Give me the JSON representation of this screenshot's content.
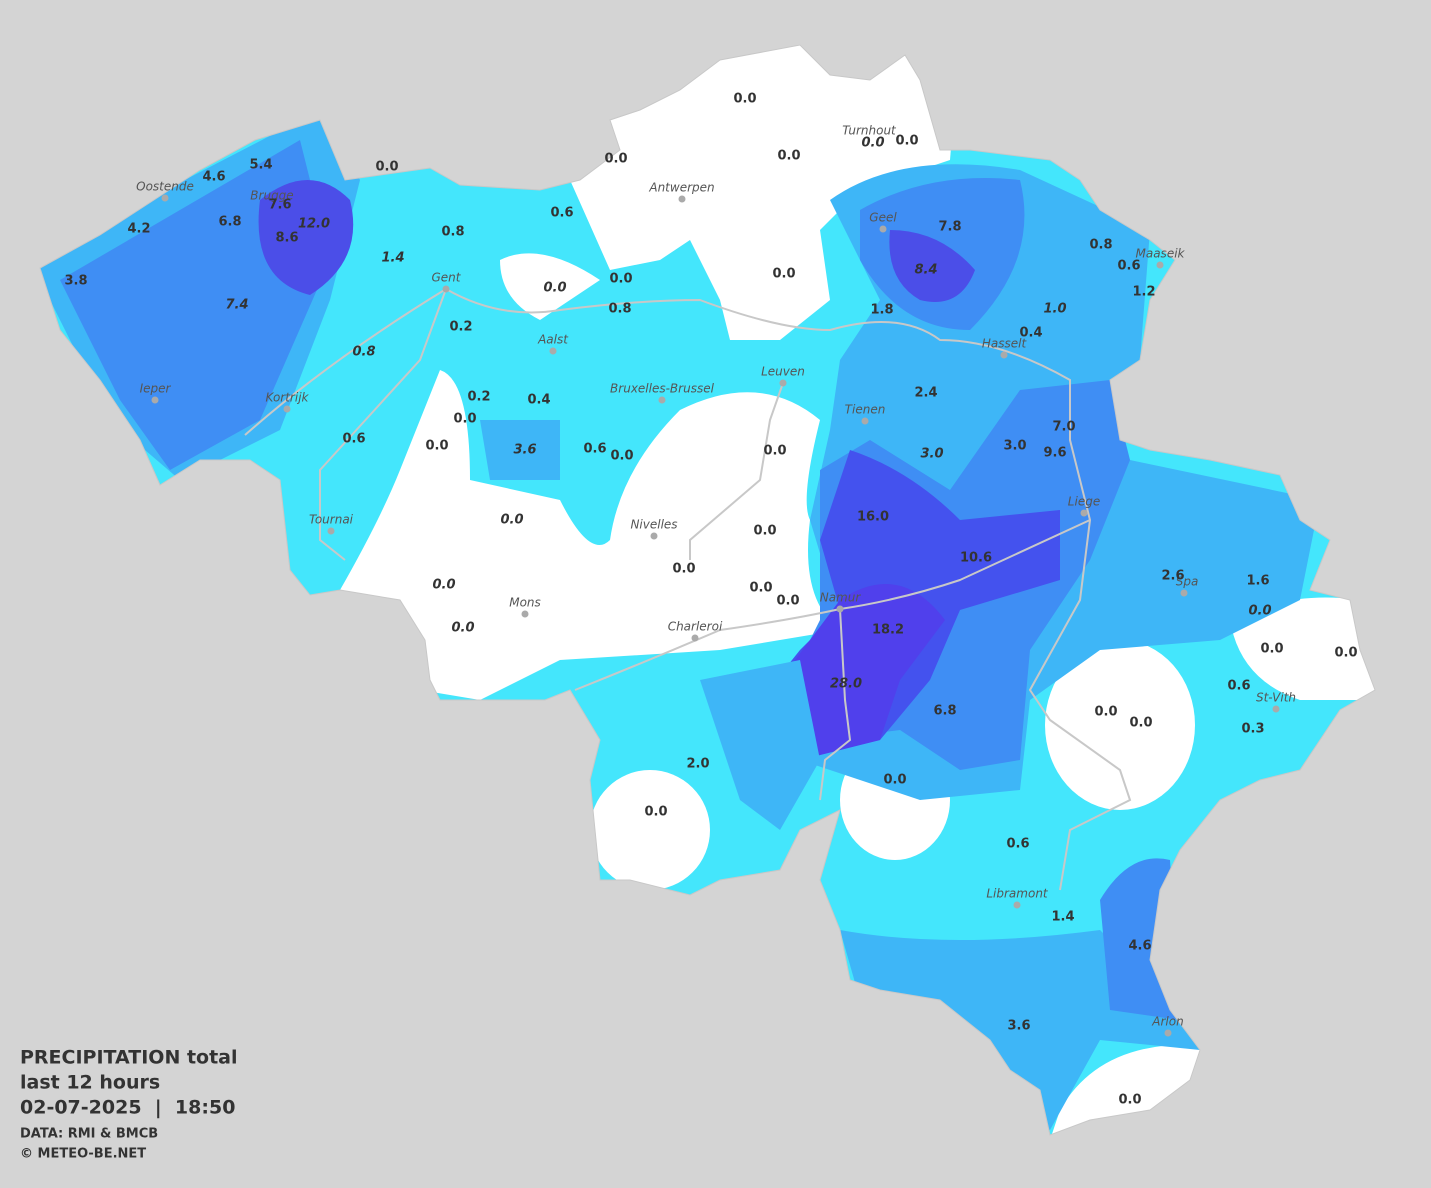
{
  "caption": {
    "title": "PRECIPITATION total",
    "period": "last 12 hours",
    "datetime": "02-07-2025  |  18:50",
    "source": "DATA: RMI & BMCB",
    "credit": "© METEO-BE.NET"
  },
  "cities": [
    "Oostende",
    "Brugge",
    "Gent",
    "Antwerpen",
    "Turnhout",
    "Geel",
    "Maaseik",
    "Hasselt",
    "Aalst",
    "Bruxelles-Brussel",
    "Leuven",
    "Tienen",
    "Ieper",
    "Kortrijk",
    "Tournai",
    "Nivelles",
    "Liege",
    "Spa",
    "Namur",
    "Mons",
    "Charleroi",
    "St-Vith",
    "Libramont",
    "Arlon"
  ],
  "stations": [
    "0.0",
    "0.0",
    "0.0",
    "0.0",
    "0.0",
    "0.0",
    "5.4",
    "4.6",
    "7.6",
    "12.0",
    "8.6",
    "6.8",
    "4.2",
    "3.8",
    "7.4",
    "1.4",
    "0.8",
    "0.6",
    "0.0",
    "0.0",
    "0.8",
    "0.0",
    "0.2",
    "0.8",
    "0.2",
    "0.4",
    "0.0",
    "0.0",
    "0.6",
    "3.6",
    "0.6",
    "0.0",
    "0.0",
    "0.0",
    "0.0",
    "0.0",
    "0.0",
    "0.0",
    "0.0",
    "0.0",
    "7.8",
    "8.4",
    "0.8",
    "0.6",
    "1.2",
    "1.0",
    "0.4",
    "1.8",
    "2.4",
    "3.0",
    "3.0",
    "7.0",
    "9.6",
    "16.0",
    "10.6",
    "18.2",
    "28.0",
    "6.8",
    "2.6",
    "1.6",
    "0.0",
    "0.0",
    "0.0",
    "0.6",
    "0.3",
    "0.0",
    "0.0",
    "2.0",
    "0.0",
    "0.0",
    "0.6",
    "1.4",
    "4.6",
    "3.6",
    "0.0"
  ]
}
